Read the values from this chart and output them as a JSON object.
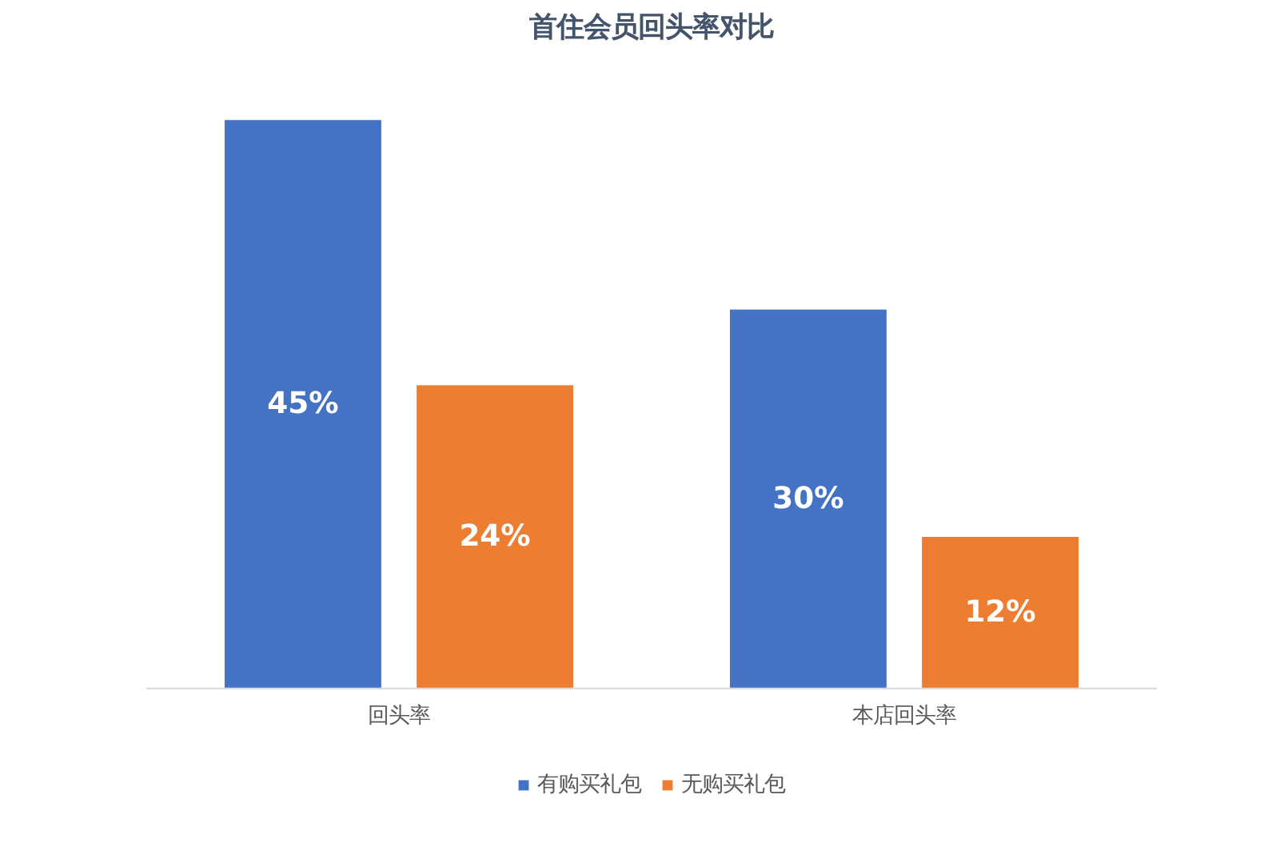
{
  "chart_data": {
    "type": "bar",
    "title": "首住会员回头率对比",
    "categories": [
      "回头率",
      "本店回头率"
    ],
    "series": [
      {
        "name": "有购买礼包",
        "color": "#4472c4",
        "values": [
          45,
          30
        ],
        "value_labels": [
          "45%",
          "30%"
        ]
      },
      {
        "name": "无购买礼包",
        "color": "#ed7d31",
        "values": [
          24,
          12
        ],
        "value_labels": [
          "24%",
          "12%"
        ]
      }
    ],
    "legend": "bottom"
  }
}
